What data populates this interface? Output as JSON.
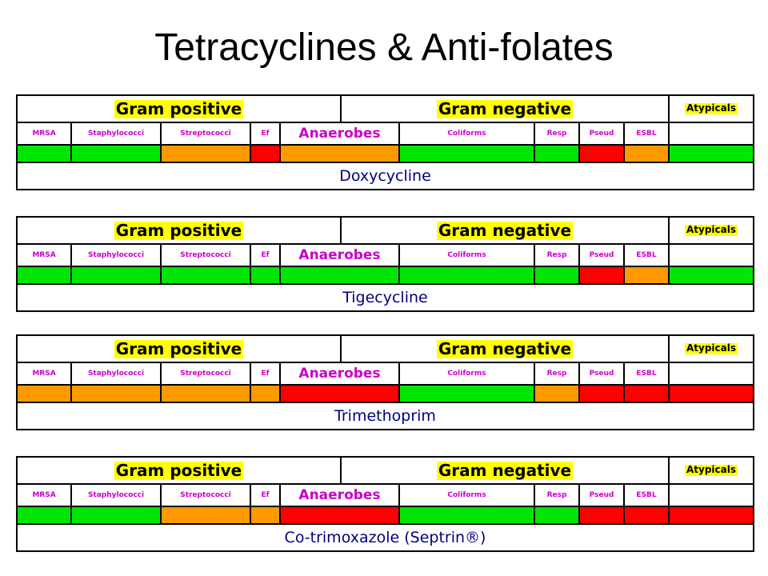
{
  "title": "Tetracyclines & Anti-folates",
  "header": {
    "gram_positive": "Gram positive",
    "gram_negative": "Gram negative",
    "atypicals": "Atypicals"
  },
  "organisms": [
    "MRSA",
    "Staphylococci",
    "Streptococci",
    "Ef",
    "Anaerobes",
    "Coliforms",
    "Resp",
    "Pseud",
    "ESBL",
    ""
  ],
  "legend_colors": {
    "green": "#00e600",
    "orange": "#ff9900",
    "red": "#ff0000"
  },
  "drugs": [
    {
      "name": "Doxycycline",
      "activity": [
        "green",
        "green",
        "orange",
        "red",
        "orange",
        "green",
        "green",
        "red",
        "orange",
        "green"
      ]
    },
    {
      "name": "Tigecycline",
      "activity": [
        "green",
        "green",
        "green",
        "green",
        "green",
        "green",
        "green",
        "red",
        "orange",
        "green"
      ]
    },
    {
      "name": "Trimethoprim",
      "activity": [
        "orange",
        "orange",
        "orange",
        "orange",
        "red",
        "green",
        "orange",
        "red",
        "red",
        "red"
      ]
    },
    {
      "name": "Co-trimoxazole (Septrin®)",
      "activity": [
        "green",
        "green",
        "orange",
        "orange",
        "red",
        "green",
        "green",
        "red",
        "red",
        "red"
      ]
    }
  ]
}
